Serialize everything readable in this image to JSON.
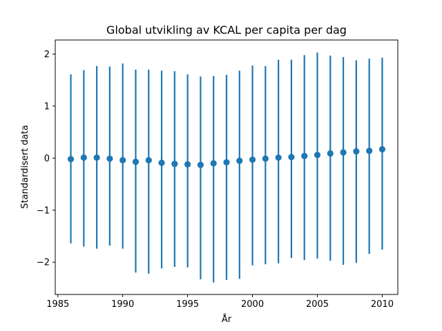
{
  "chart_data": {
    "type": "scatter",
    "title": "Global utvikling av KCAL per capita per dag",
    "xlabel": "År",
    "ylabel": "Standardisert data",
    "xlim": [
      1984.8,
      2011.2
    ],
    "ylim": [
      -2.62,
      2.27
    ],
    "x_ticks": [
      1985,
      1990,
      1995,
      2000,
      2005,
      2010
    ],
    "y_ticks": [
      -2,
      -1,
      0,
      1,
      2
    ],
    "y_tick_labels": [
      "−2",
      "−1",
      "0",
      "1",
      "2"
    ],
    "grid": false,
    "color": "#1f77b4",
    "series": [
      {
        "x": [
          1986,
          1987,
          1988,
          1989,
          1990,
          1991,
          1992,
          1993,
          1994,
          1995,
          1996,
          1997,
          1998,
          1999,
          2000,
          2001,
          2002,
          2003,
          2004,
          2005,
          2006,
          2007,
          2008,
          2009,
          2010
        ],
        "y": [
          -0.02,
          0.01,
          0.01,
          -0.01,
          -0.04,
          -0.07,
          -0.04,
          -0.09,
          -0.11,
          -0.12,
          -0.13,
          -0.1,
          -0.08,
          -0.05,
          -0.03,
          -0.01,
          0.01,
          0.02,
          0.04,
          0.06,
          0.09,
          0.11,
          0.13,
          0.14,
          0.17
        ],
        "yerr_low": [
          -1.64,
          -1.7,
          -1.74,
          -1.68,
          -1.74,
          -2.2,
          -2.22,
          -2.12,
          -2.09,
          -2.1,
          -2.33,
          -2.39,
          -2.34,
          -2.32,
          -2.06,
          -2.04,
          -2.02,
          -1.92,
          -1.96,
          -1.93,
          -1.97,
          -2.05,
          -2.01,
          -1.84,
          -1.76
        ],
        "yerr_high": [
          1.61,
          1.69,
          1.77,
          1.76,
          1.82,
          1.7,
          1.7,
          1.68,
          1.67,
          1.61,
          1.57,
          1.58,
          1.6,
          1.68,
          1.78,
          1.77,
          1.89,
          1.89,
          1.98,
          2.03,
          1.97,
          1.94,
          1.88,
          1.91,
          1.93
        ]
      }
    ]
  }
}
